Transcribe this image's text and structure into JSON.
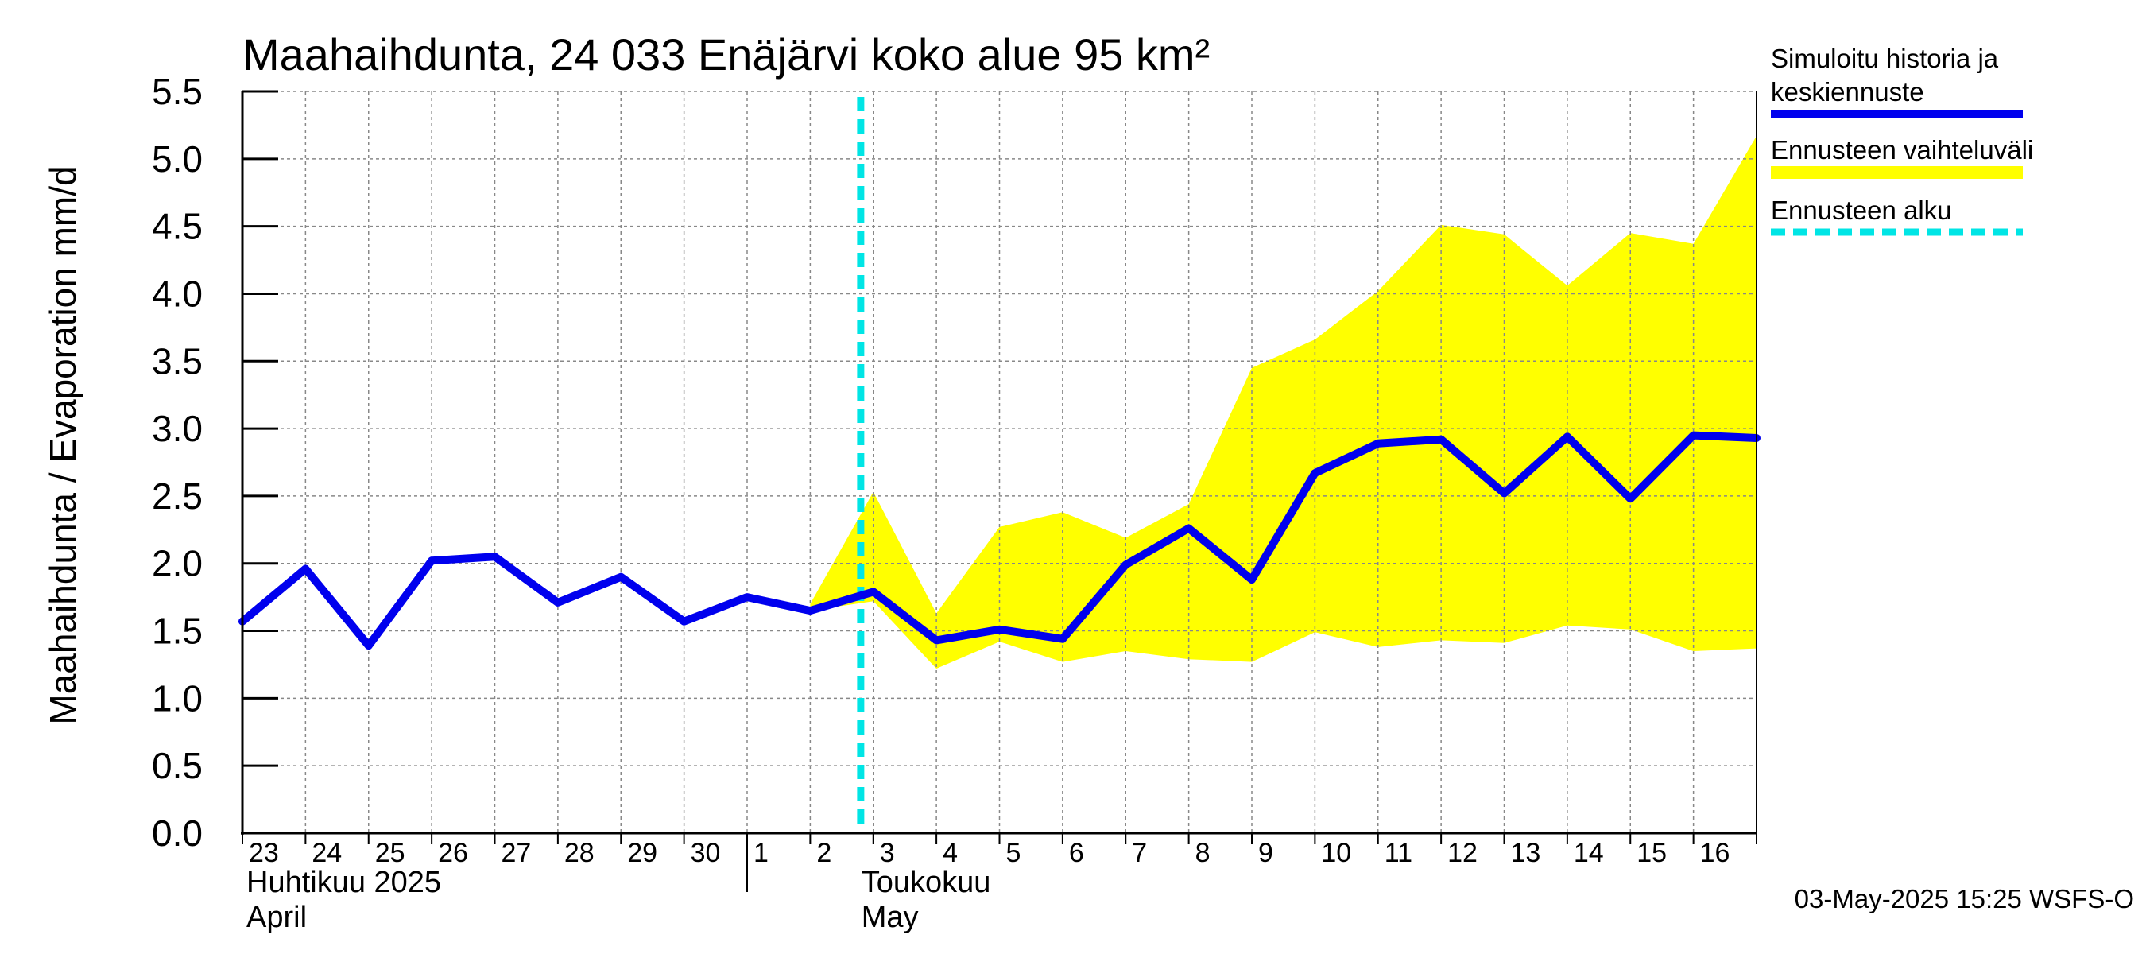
{
  "chart_data": {
    "type": "line",
    "title": "Maahaihdunta, 24 033 Enäjärvi koko alue 95 km²",
    "ylabel": "Maahaihdunta / Evaporation   mm/d",
    "ylim": [
      0.0,
      5.5
    ],
    "yticks": [
      "0.0",
      "0.5",
      "1.0",
      "1.5",
      "2.0",
      "2.5",
      "3.0",
      "3.5",
      "4.0",
      "4.5",
      "5.0",
      "5.5"
    ],
    "day_labels": [
      "23",
      "24",
      "25",
      "26",
      "27",
      "28",
      "29",
      "30",
      "1",
      "2",
      "3",
      "4",
      "5",
      "6",
      "7",
      "8",
      "9",
      "10",
      "11",
      "12",
      "13",
      "14",
      "15",
      "16"
    ],
    "months": [
      {
        "fi": "Huhtikuu  2025",
        "en": "April",
        "start_day_index": 0
      },
      {
        "fi": "Toukokuu",
        "en": "May",
        "start_day_index": 8
      }
    ],
    "forecast_start_index": 10,
    "series": [
      {
        "name": "Simuloitu historia ja keskiennuste",
        "color": "#0000ee",
        "x": [
          0,
          1,
          2,
          3,
          4,
          5,
          6,
          7,
          8,
          9,
          10,
          11,
          12,
          13,
          14,
          15,
          16,
          17,
          18,
          19,
          20,
          21,
          22,
          23,
          24
        ],
        "values": [
          1.57,
          1.96,
          1.39,
          2.02,
          2.05,
          1.71,
          1.9,
          1.57,
          1.75,
          1.65,
          1.79,
          1.43,
          1.51,
          1.44,
          1.99,
          2.26,
          1.88,
          2.67,
          2.89,
          2.92,
          2.52,
          2.94,
          2.48,
          2.95,
          2.93
        ]
      }
    ],
    "band": {
      "name": "Ennusteen vaihteluväli",
      "color": "#ffff00",
      "x": [
        9,
        10,
        11,
        12,
        13,
        14,
        15,
        16,
        17,
        18,
        19,
        20,
        21,
        22,
        23,
        24
      ],
      "upper": [
        1.7,
        2.53,
        1.63,
        2.27,
        2.38,
        2.19,
        2.44,
        3.45,
        3.66,
        4.02,
        4.51,
        4.44,
        4.06,
        4.45,
        4.37,
        5.17
      ],
      "lower": [
        1.65,
        1.72,
        1.22,
        1.42,
        1.27,
        1.35,
        1.29,
        1.27,
        1.49,
        1.38,
        1.43,
        1.41,
        1.54,
        1.51,
        1.35,
        1.37
      ]
    },
    "forecast_line": {
      "name": "Ennusteen alku",
      "color": "#00e5e5"
    },
    "legend": [
      {
        "label": "Simuloitu historia ja keskiennuste",
        "color": "#0000ee",
        "style": "solid"
      },
      {
        "label": "Ennusteen vaihteluväli",
        "color": "#ffff00",
        "style": "band"
      },
      {
        "label": "Ennusteen alku",
        "color": "#00e5e5",
        "style": "dashed"
      }
    ],
    "legend_lines": [
      "Simuloitu historia ja",
      "keskiennuste"
    ],
    "legend_position": "right",
    "grid": true
  },
  "footer": "03-May-2025 15:25 WSFS-O"
}
